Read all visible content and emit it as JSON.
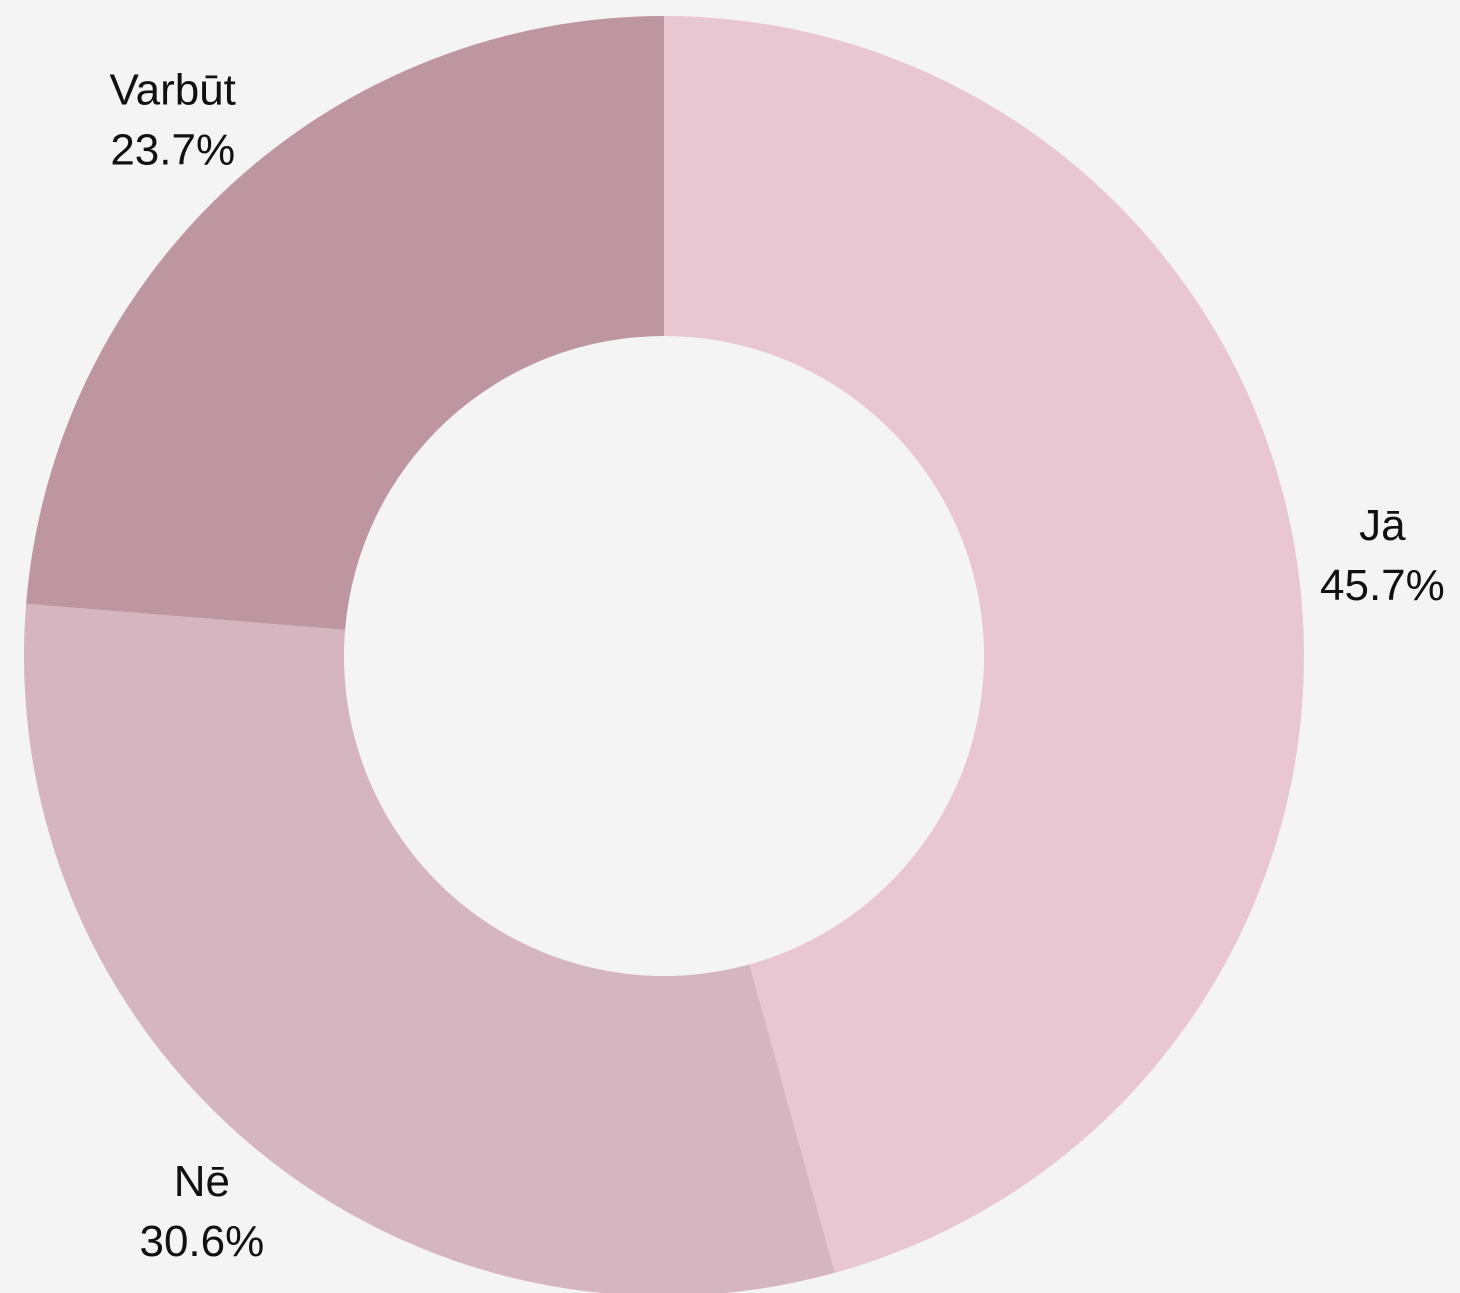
{
  "chart_data": {
    "type": "donut",
    "categories": [
      "Jā",
      "Nē",
      "Varbūt"
    ],
    "values": [
      45.7,
      30.6,
      23.7
    ],
    "value_labels": [
      "45.7%",
      "30.6%",
      "23.7%"
    ],
    "colors": [
      "#e8c7d3",
      "#d5b5bf",
      "#bd96a1"
    ]
  }
}
